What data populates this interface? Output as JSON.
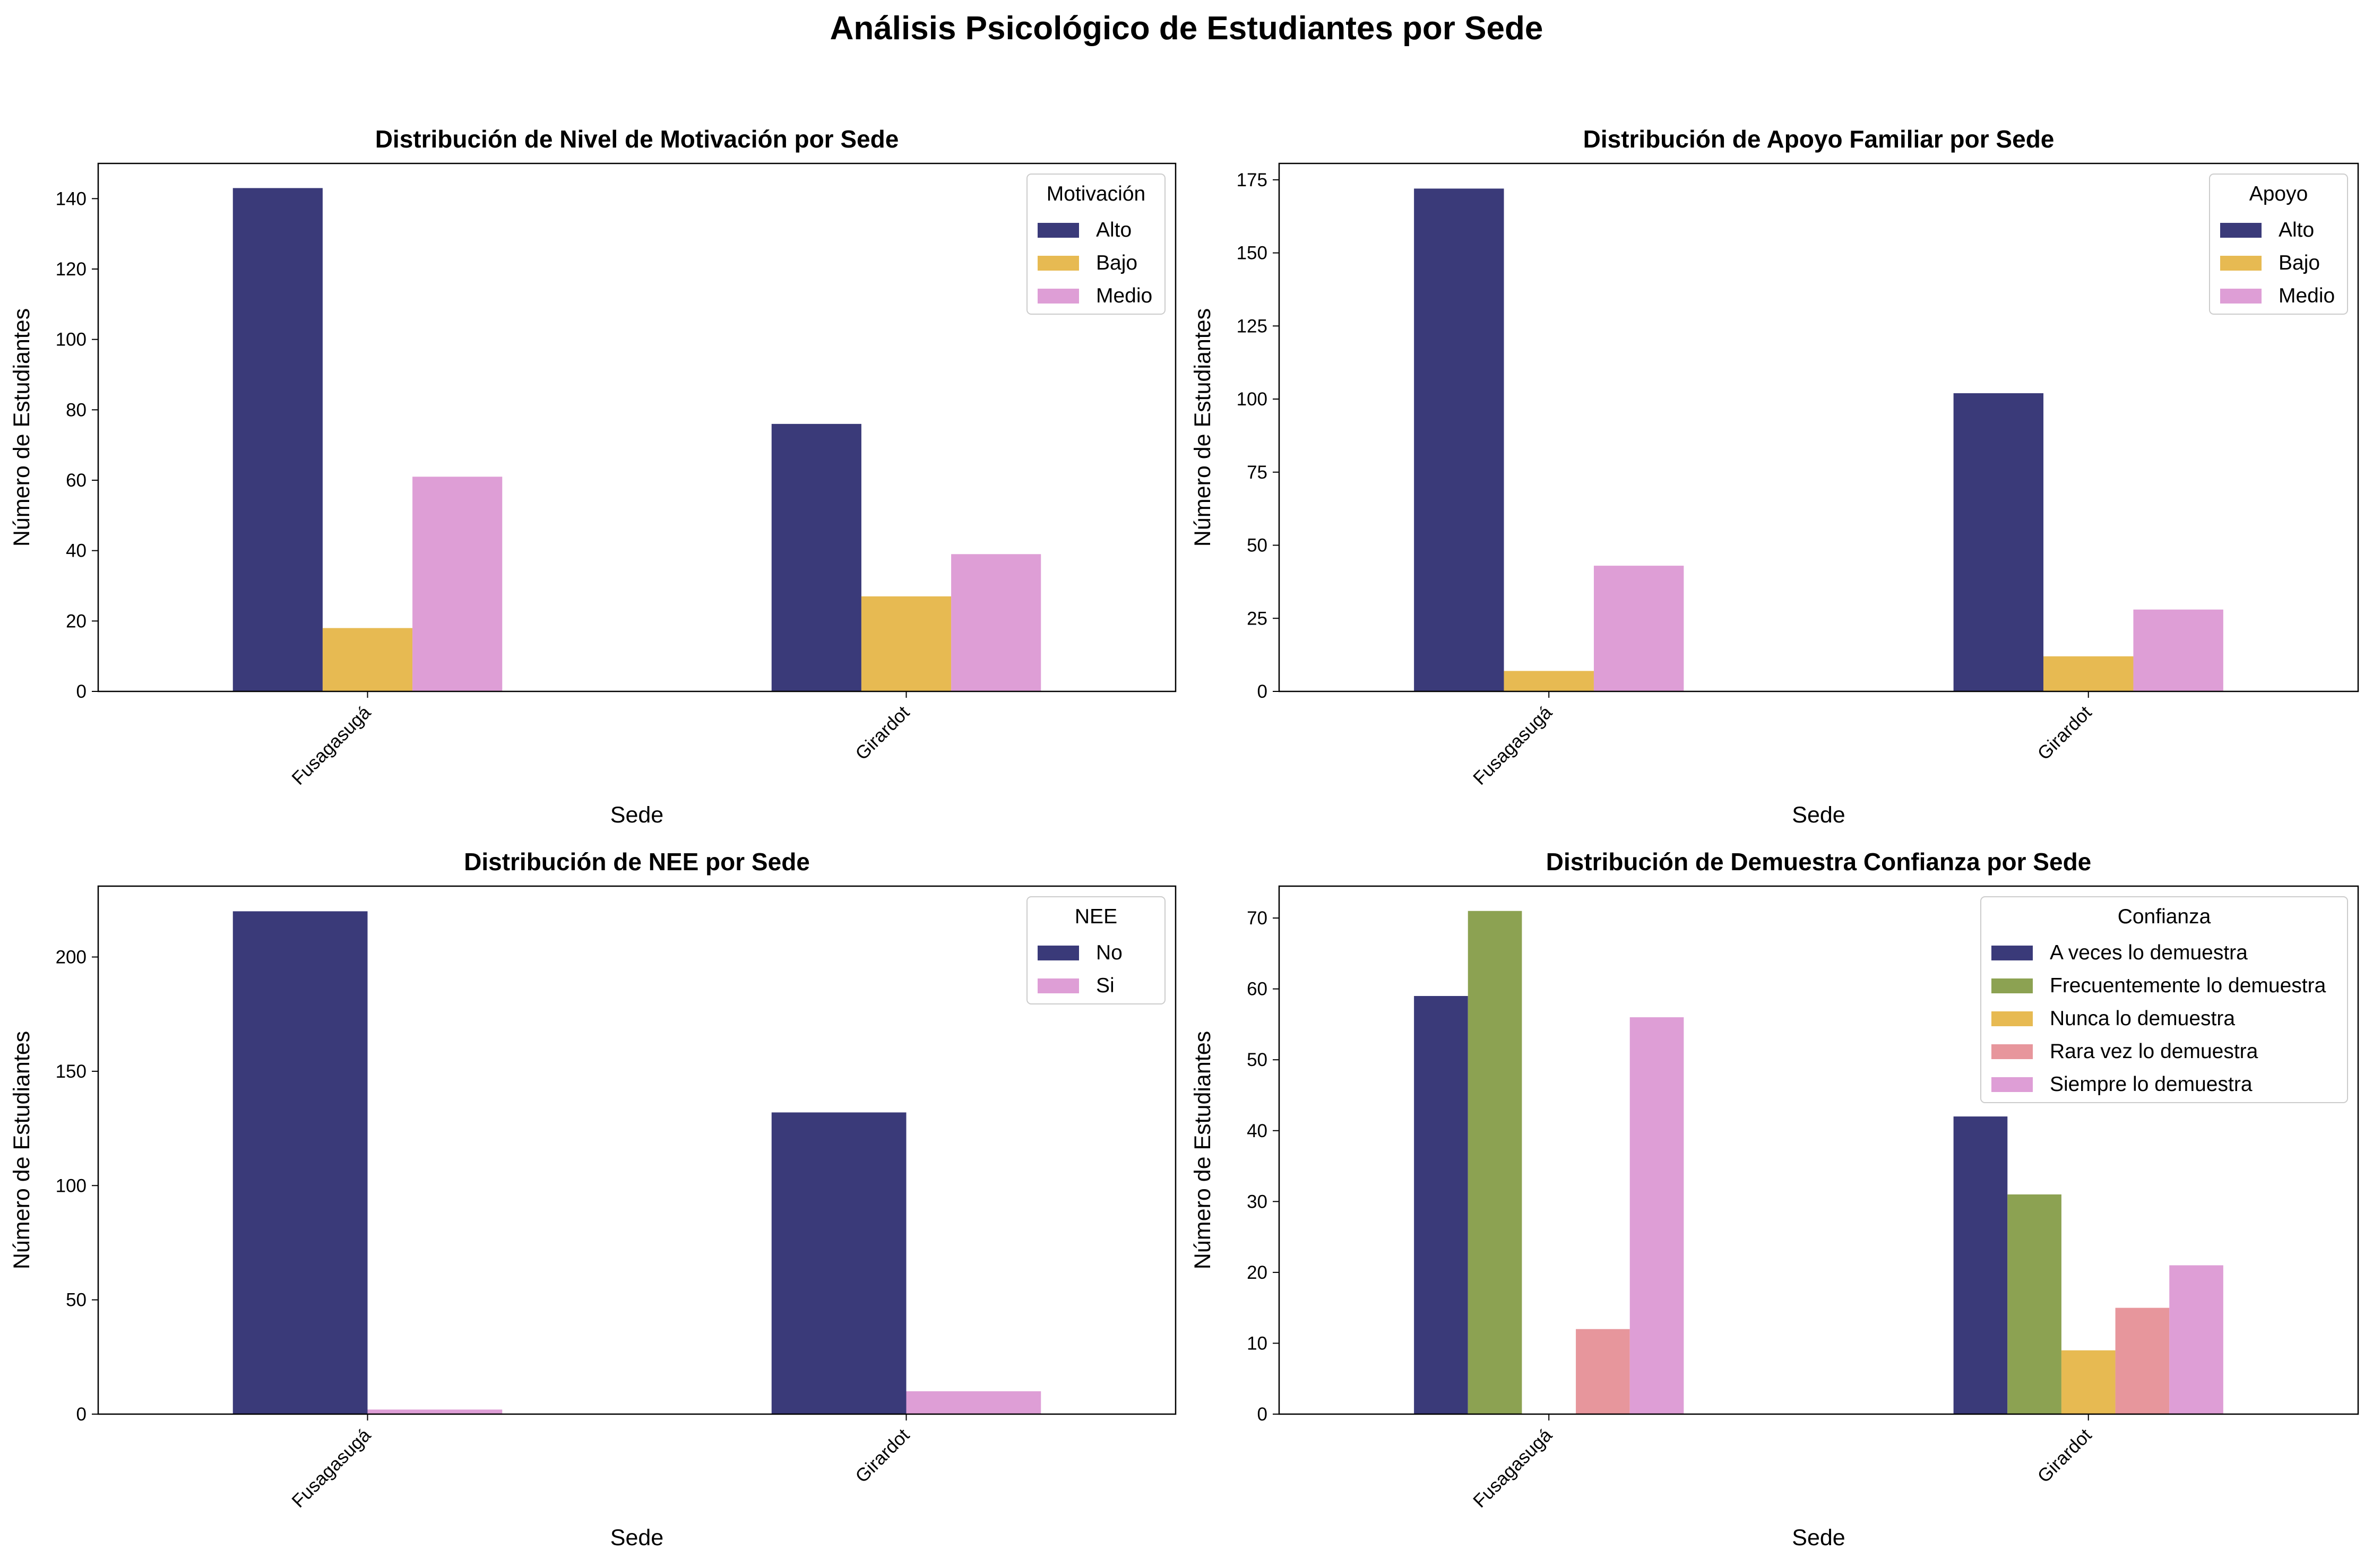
{
  "title": "Análisis Psicológico de Estudiantes por Sede",
  "colors": {
    "navy": "#3a3a79",
    "olive": "#8ca252",
    "gold": "#e7ba52",
    "salmon": "#e7969c",
    "orchid": "#de9ed6"
  },
  "chart_data": [
    {
      "type": "bar",
      "title": "Distribución de Nivel de Motivación por Sede",
      "xlabel": "Sede",
      "ylabel": "Número de Estudiantes",
      "categories": [
        "Fusagasugá",
        "Girardot"
      ],
      "ylim": [
        0,
        150
      ],
      "yticks": [
        0,
        20,
        40,
        60,
        80,
        100,
        120,
        140
      ],
      "legend_title": "Motivación",
      "legend_position": "top-right",
      "series": [
        {
          "name": "Alto",
          "values": [
            143,
            76
          ],
          "color": "#3a3a79"
        },
        {
          "name": "Bajo",
          "values": [
            18,
            27
          ],
          "color": "#e7ba52"
        },
        {
          "name": "Medio",
          "values": [
            61,
            39
          ],
          "color": "#de9ed6"
        }
      ]
    },
    {
      "type": "bar",
      "title": "Distribución de Apoyo Familiar por Sede",
      "xlabel": "Sede",
      "ylabel": "Número de Estudiantes",
      "categories": [
        "Fusagasugá",
        "Girardot"
      ],
      "ylim": [
        0,
        180.6
      ],
      "yticks": [
        0,
        25,
        50,
        75,
        100,
        125,
        150,
        175
      ],
      "legend_title": "Apoyo",
      "legend_position": "top-right",
      "series": [
        {
          "name": "Alto",
          "values": [
            172,
            102
          ],
          "color": "#3a3a79"
        },
        {
          "name": "Bajo",
          "values": [
            7,
            12
          ],
          "color": "#e7ba52"
        },
        {
          "name": "Medio",
          "values": [
            43,
            28
          ],
          "color": "#de9ed6"
        }
      ]
    },
    {
      "type": "bar",
      "title": "Distribución de NEE por Sede",
      "xlabel": "Sede",
      "ylabel": "Número de Estudiantes",
      "categories": [
        "Fusagasugá",
        "Girardot"
      ],
      "ylim": [
        0,
        231
      ],
      "yticks": [
        0,
        50,
        100,
        150,
        200
      ],
      "legend_title": "NEE",
      "legend_position": "top-right",
      "series": [
        {
          "name": "No",
          "values": [
            220,
            132
          ],
          "color": "#3a3a79"
        },
        {
          "name": "Si",
          "values": [
            2,
            10
          ],
          "color": "#de9ed6"
        }
      ]
    },
    {
      "type": "bar",
      "title": "Distribución de Demuestra Confianza por Sede",
      "xlabel": "Sede",
      "ylabel": "Número de Estudiantes",
      "categories": [
        "Fusagasugá",
        "Girardot"
      ],
      "ylim": [
        0,
        74.5
      ],
      "yticks": [
        0,
        10,
        20,
        30,
        40,
        50,
        60,
        70
      ],
      "legend_title": "Confianza",
      "legend_position": "top-right",
      "series": [
        {
          "name": "A veces lo demuestra",
          "values": [
            59,
            42
          ],
          "color": "#3a3a79"
        },
        {
          "name": "Frecuentemente lo demuestra",
          "values": [
            71,
            31
          ],
          "color": "#8ca252"
        },
        {
          "name": "Nunca lo demuestra",
          "values": [
            0,
            9
          ],
          "color": "#e7ba52"
        },
        {
          "name": "Rara vez lo demuestra",
          "values": [
            12,
            15
          ],
          "color": "#e7969c"
        },
        {
          "name": "Siempre lo demuestra",
          "values": [
            56,
            21
          ],
          "color": "#de9ed6"
        }
      ]
    }
  ]
}
